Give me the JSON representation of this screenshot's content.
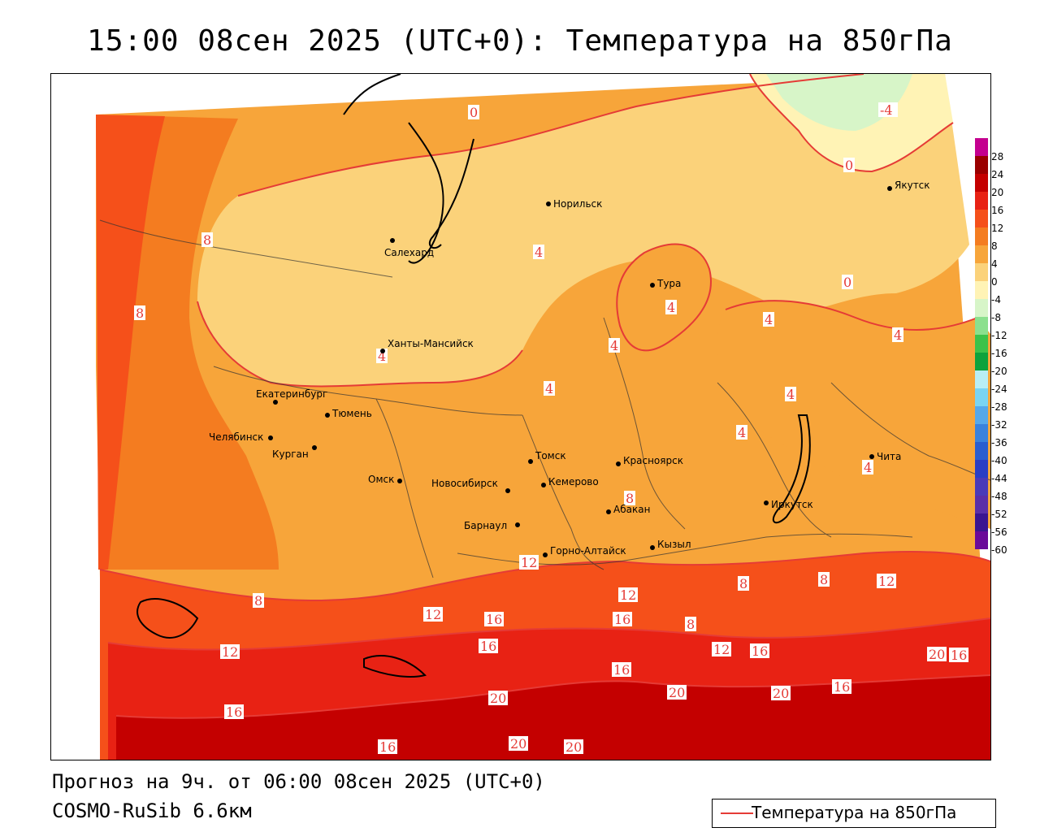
{
  "title": "15:00 08сен 2025 (UTC+0): Температура на 850гПа",
  "footer": {
    "forecast": "Прогноз на 9ч. от 06:00 08сен 2025 (UTC+0)",
    "model": "COSMO-RuSib 6.6км"
  },
  "legend": {
    "label": "Температура на 850гПа",
    "line_color": "#e53b36"
  },
  "scale": {
    "ticks": [
      "28",
      "24",
      "20",
      "16",
      "12",
      "8",
      "4",
      "0",
      "-4",
      "-8",
      "-12",
      "-16",
      "-20",
      "-24",
      "-28",
      "-32",
      "-36",
      "-40",
      "-44",
      "-48",
      "-52",
      "-56",
      "-60"
    ],
    "colors": [
      "#c4008f",
      "#9a0000",
      "#c40000",
      "#e82214",
      "#f5501a",
      "#f47c20",
      "#f7a53a",
      "#fbd27a",
      "#fff3b5",
      "#d7f5c8",
      "#8be08e",
      "#3cc24a",
      "#0ea23c",
      "#b8eef5",
      "#7ad4f2",
      "#56a8ea",
      "#3a82dc",
      "#2a5ed0",
      "#2a3ec4",
      "#4a3ab8",
      "#5a2fa8",
      "#3a1590",
      "#6a0a9a"
    ]
  },
  "cities": [
    {
      "name": "Норильск"
    },
    {
      "name": "Салехард"
    },
    {
      "name": "Тура"
    },
    {
      "name": "Якутск"
    },
    {
      "name": "Ханты-Мансийск"
    },
    {
      "name": "Екатеринбург"
    },
    {
      "name": "Тюмень"
    },
    {
      "name": "Челябинск"
    },
    {
      "name": "Курган"
    },
    {
      "name": "Омск"
    },
    {
      "name": "Новосибирск"
    },
    {
      "name": "Томск"
    },
    {
      "name": "Кемерово"
    },
    {
      "name": "Красноярск"
    },
    {
      "name": "Барнаул"
    },
    {
      "name": "Абакан"
    },
    {
      "name": "Горно-Алтайск"
    },
    {
      "name": "Кызыл"
    },
    {
      "name": "Иркутск"
    },
    {
      "name": "Чита"
    }
  ],
  "isotherm_labels": [
    "0",
    "0",
    "0",
    "-4",
    "4",
    "4",
    "4",
    "4",
    "4",
    "4",
    "4",
    "4",
    "4",
    "4",
    "8",
    "8",
    "8",
    "8",
    "8",
    "8",
    "8",
    "12",
    "12",
    "12",
    "12",
    "12",
    "12",
    "16",
    "16",
    "16",
    "16",
    "16",
    "16",
    "16",
    "16",
    "16",
    "20",
    "20",
    "20",
    "20",
    "20",
    "20"
  ]
}
